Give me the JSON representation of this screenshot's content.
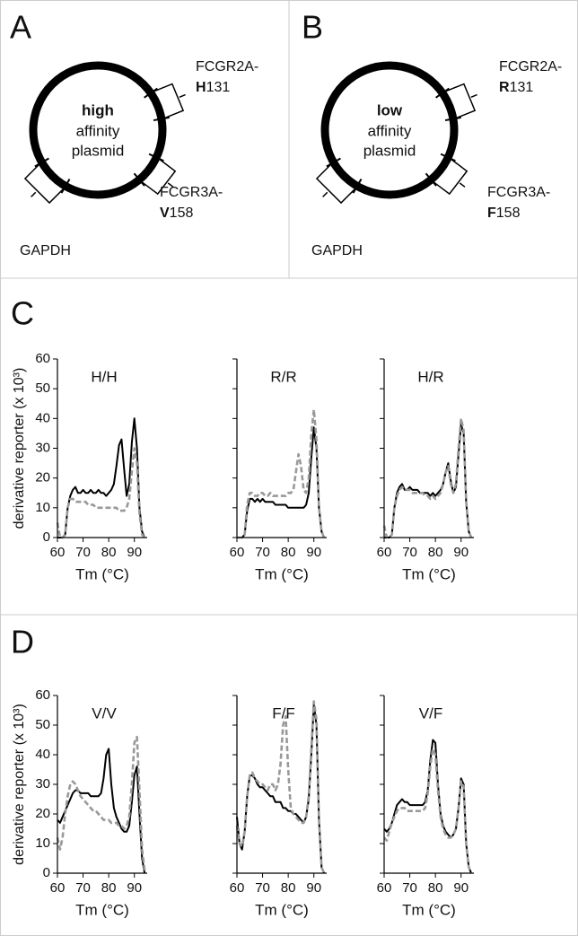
{
  "diagrams": [
    {
      "label": "A",
      "affinity": "high",
      "center_text": [
        "affinity",
        "plasmid"
      ],
      "genes": [
        {
          "name": "FCGR2A-",
          "allele": "H",
          "codon": "131"
        },
        {
          "name": "FCGR3A-",
          "allele": "V",
          "codon": "158"
        },
        {
          "name": "GAPDH"
        }
      ]
    },
    {
      "label": "B",
      "affinity": "low",
      "center_text": [
        "affinity",
        "plasmid"
      ],
      "genes": [
        {
          "name": "FCGR2A-",
          "allele": "R",
          "codon": "131"
        },
        {
          "name": "FCGR3A-",
          "allele": "F",
          "codon": "158"
        },
        {
          "name": "GAPDH"
        }
      ]
    }
  ],
  "chart_panels": [
    "C",
    "D"
  ],
  "chart_data": [
    {
      "type": "line",
      "title": "H/H",
      "ylabel": "derivative reporter (x 10³)",
      "xlabel": "Tm (°C)",
      "show_ytick_labels": true,
      "xlim": [
        60,
        95
      ],
      "xticks": [
        60,
        70,
        80,
        90
      ],
      "ylim": [
        0,
        60
      ],
      "yticks": [
        0,
        10,
        20,
        30,
        40,
        50,
        60
      ],
      "x": [
        60,
        61,
        62,
        63,
        64,
        65,
        66,
        67,
        68,
        69,
        70,
        71,
        72,
        73,
        74,
        75,
        76,
        77,
        78,
        79,
        80,
        81,
        82,
        83,
        84,
        85,
        86,
        87,
        88,
        89,
        90,
        91,
        92,
        93,
        94
      ],
      "series": [
        {
          "color": "#000000",
          "dashed": false,
          "values": [
            0,
            0,
            0,
            1,
            10,
            14,
            16,
            17,
            15,
            15,
            16,
            15,
            15,
            16,
            15,
            15,
            16,
            15,
            15,
            14,
            15,
            16,
            18,
            24,
            31,
            33,
            23,
            14,
            18,
            32,
            40,
            30,
            10,
            2,
            0
          ]
        },
        {
          "color": "#999999",
          "dashed": true,
          "values": [
            5,
            0,
            0,
            1,
            10,
            13,
            13,
            12,
            12,
            12,
            12,
            12,
            11,
            11,
            11,
            10,
            10,
            10,
            10,
            10,
            10,
            10,
            10,
            10,
            9,
            9,
            9,
            10,
            13,
            22,
            30,
            25,
            8,
            1,
            0
          ]
        }
      ]
    },
    {
      "type": "line",
      "title": "R/R",
      "xlabel": "Tm (°C)",
      "show_ytick_labels": false,
      "xlim": [
        60,
        95
      ],
      "xticks": [
        60,
        70,
        80,
        90
      ],
      "ylim": [
        0,
        60
      ],
      "yticks": [
        0,
        10,
        20,
        30,
        40,
        50,
        60
      ],
      "x": [
        60,
        61,
        62,
        63,
        64,
        65,
        66,
        67,
        68,
        69,
        70,
        71,
        72,
        73,
        74,
        75,
        76,
        77,
        78,
        79,
        80,
        81,
        82,
        83,
        84,
        85,
        86,
        87,
        88,
        89,
        90,
        91,
        92,
        93,
        94
      ],
      "series": [
        {
          "color": "#000000",
          "dashed": false,
          "values": [
            0,
            0,
            0,
            1,
            9,
            13,
            13,
            12,
            13,
            12,
            13,
            12,
            12,
            12,
            12,
            11,
            11,
            11,
            11,
            11,
            10,
            10,
            10,
            10,
            10,
            10,
            10,
            11,
            15,
            27,
            37,
            30,
            10,
            2,
            0
          ]
        },
        {
          "color": "#999999",
          "dashed": true,
          "values": [
            0,
            0,
            0,
            1,
            11,
            15,
            15,
            14,
            14,
            15,
            15,
            14,
            14,
            15,
            14,
            14,
            14,
            14,
            14,
            14,
            15,
            15,
            16,
            22,
            28,
            24,
            16,
            15,
            20,
            35,
            43,
            33,
            10,
            2,
            0
          ]
        }
      ]
    },
    {
      "type": "line",
      "title": "H/R",
      "xlabel": "Tm (°C)",
      "show_ytick_labels": false,
      "xlim": [
        60,
        95
      ],
      "xticks": [
        60,
        70,
        80,
        90
      ],
      "ylim": [
        0,
        60
      ],
      "yticks": [
        0,
        10,
        20,
        30,
        40,
        50,
        60
      ],
      "x": [
        60,
        61,
        62,
        63,
        64,
        65,
        66,
        67,
        68,
        69,
        70,
        71,
        72,
        73,
        74,
        75,
        76,
        77,
        78,
        79,
        80,
        81,
        82,
        83,
        84,
        85,
        86,
        87,
        88,
        89,
        90,
        91,
        92,
        93,
        94
      ],
      "series": [
        {
          "color": "#000000",
          "dashed": false,
          "values": [
            0,
            0,
            0,
            1,
            10,
            15,
            17,
            18,
            16,
            16,
            17,
            16,
            16,
            16,
            15,
            15,
            15,
            15,
            14,
            15,
            14,
            15,
            16,
            18,
            22,
            25,
            19,
            15,
            17,
            28,
            38,
            35,
            12,
            2,
            0
          ]
        },
        {
          "color": "#999999",
          "dashed": true,
          "values": [
            4,
            0,
            0,
            1,
            10,
            14,
            16,
            17,
            16,
            16,
            16,
            15,
            15,
            15,
            15,
            15,
            14,
            14,
            13,
            14,
            13,
            14,
            15,
            18,
            22,
            24,
            18,
            15,
            18,
            30,
            40,
            36,
            12,
            2,
            0
          ]
        }
      ]
    },
    {
      "type": "line",
      "title": "V/V",
      "ylabel": "derivative reporter (x 10³)",
      "xlabel": "Tm (°C)",
      "show_ytick_labels": true,
      "xlim": [
        60,
        95
      ],
      "xticks": [
        60,
        70,
        80,
        90
      ],
      "ylim": [
        0,
        60
      ],
      "yticks": [
        0,
        10,
        20,
        30,
        40,
        50,
        60
      ],
      "x": [
        60,
        61,
        62,
        63,
        64,
        65,
        66,
        67,
        68,
        69,
        70,
        71,
        72,
        73,
        74,
        75,
        76,
        77,
        78,
        79,
        80,
        81,
        82,
        83,
        84,
        85,
        86,
        87,
        88,
        89,
        90,
        91,
        92,
        93,
        94
      ],
      "series": [
        {
          "color": "#000000",
          "dashed": false,
          "values": [
            18,
            17,
            19,
            21,
            23,
            25,
            27,
            28,
            28,
            27,
            27,
            27,
            27,
            26,
            26,
            26,
            26,
            27,
            32,
            40,
            42,
            30,
            22,
            19,
            17,
            15,
            14,
            14,
            16,
            24,
            33,
            36,
            20,
            5,
            0
          ]
        },
        {
          "color": "#999999",
          "dashed": true,
          "values": [
            12,
            8,
            12,
            20,
            26,
            30,
            31,
            30,
            28,
            26,
            25,
            24,
            23,
            22,
            21,
            21,
            20,
            19,
            18,
            18,
            18,
            17,
            17,
            17,
            16,
            16,
            15,
            16,
            19,
            30,
            44,
            46,
            28,
            8,
            1
          ]
        }
      ]
    },
    {
      "type": "line",
      "title": "F/F",
      "xlabel": "Tm (°C)",
      "show_ytick_labels": false,
      "xlim": [
        60,
        95
      ],
      "xticks": [
        60,
        70,
        80,
        90
      ],
      "ylim": [
        0,
        60
      ],
      "yticks": [
        0,
        10,
        20,
        30,
        40,
        50,
        60
      ],
      "x": [
        60,
        61,
        62,
        63,
        64,
        65,
        66,
        67,
        68,
        69,
        70,
        71,
        72,
        73,
        74,
        75,
        76,
        77,
        78,
        79,
        80,
        81,
        82,
        83,
        84,
        85,
        86,
        87,
        88,
        89,
        90,
        91,
        92,
        93,
        94
      ],
      "series": [
        {
          "color": "#000000",
          "dashed": false,
          "values": [
            19,
            10,
            8,
            14,
            26,
            33,
            33,
            32,
            30,
            29,
            29,
            28,
            27,
            26,
            26,
            24,
            24,
            24,
            22,
            22,
            21,
            21,
            20,
            20,
            19,
            18,
            17,
            19,
            25,
            40,
            57,
            50,
            18,
            2,
            0
          ]
        },
        {
          "color": "#999999",
          "dashed": true,
          "values": [
            16,
            10,
            9,
            14,
            26,
            33,
            34,
            32,
            31,
            30,
            30,
            29,
            28,
            30,
            30,
            28,
            30,
            37,
            50,
            53,
            35,
            22,
            20,
            19,
            18,
            17,
            17,
            19,
            26,
            42,
            58,
            52,
            18,
            2,
            0
          ]
        }
      ]
    },
    {
      "type": "line",
      "title": "V/F",
      "xlabel": "Tm (°C)",
      "show_ytick_labels": false,
      "xlim": [
        60,
        95
      ],
      "xticks": [
        60,
        70,
        80,
        90
      ],
      "ylim": [
        0,
        60
      ],
      "yticks": [
        0,
        10,
        20,
        30,
        40,
        50,
        60
      ],
      "x": [
        60,
        61,
        62,
        63,
        64,
        65,
        66,
        67,
        68,
        69,
        70,
        71,
        72,
        73,
        74,
        75,
        76,
        77,
        78,
        79,
        80,
        81,
        82,
        83,
        84,
        85,
        86,
        87,
        88,
        89,
        90,
        91,
        92,
        93,
        94
      ],
      "series": [
        {
          "color": "#000000",
          "dashed": false,
          "values": [
            15,
            14,
            15,
            17,
            20,
            23,
            24,
            25,
            24,
            24,
            23,
            23,
            23,
            23,
            23,
            23,
            24,
            28,
            38,
            45,
            44,
            30,
            20,
            16,
            14,
            13,
            12,
            13,
            15,
            22,
            32,
            30,
            10,
            2,
            0
          ]
        },
        {
          "color": "#999999",
          "dashed": true,
          "values": [
            12,
            11,
            14,
            17,
            19,
            21,
            22,
            22,
            22,
            21,
            21,
            21,
            21,
            21,
            21,
            21,
            22,
            27,
            36,
            42,
            40,
            28,
            19,
            15,
            13,
            12,
            12,
            13,
            15,
            22,
            31,
            29,
            10,
            2,
            0
          ]
        }
      ]
    }
  ]
}
